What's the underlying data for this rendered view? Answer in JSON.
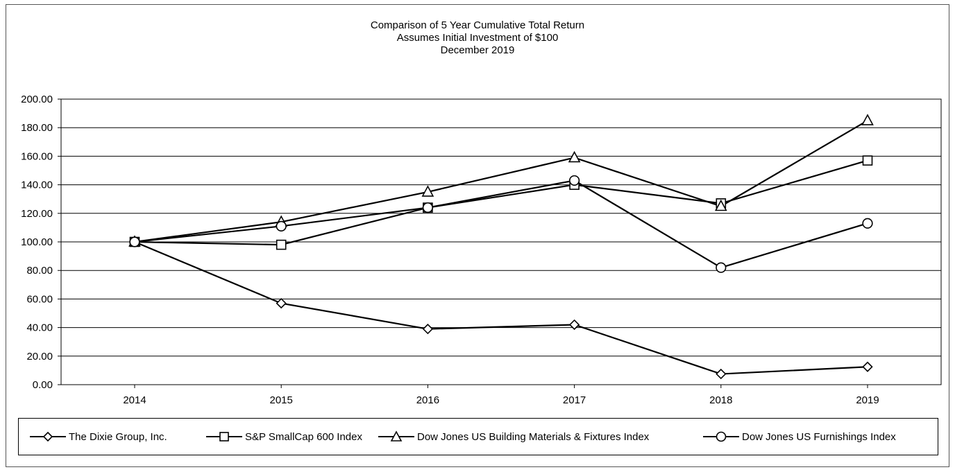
{
  "chart_data": {
    "type": "line",
    "title": "Comparison of 5 Year Cumulative Total Return",
    "subtitle_1": "Assumes Initial Investment of $100",
    "subtitle_2": "December 2019",
    "categories": [
      "2014",
      "2015",
      "2016",
      "2017",
      "2018",
      "2019"
    ],
    "ylim": [
      0,
      200
    ],
    "y_ticks": [
      "0.00",
      "20.00",
      "40.00",
      "60.00",
      "80.00",
      "100.00",
      "120.00",
      "140.00",
      "160.00",
      "180.00",
      "200.00"
    ],
    "grid": true,
    "legend_position": "bottom",
    "series": [
      {
        "name": "The Dixie Group, Inc.",
        "marker": "diamond",
        "values": [
          100,
          57,
          39,
          42,
          7.5,
          12.5
        ]
      },
      {
        "name": "S&P SmallCap 600 Index",
        "marker": "square",
        "values": [
          100,
          98,
          124,
          140,
          127,
          157
        ]
      },
      {
        "name": "Dow Jones US Building Materials & Fixtures Index",
        "marker": "triangle",
        "values": [
          100,
          114,
          135,
          159,
          125,
          185
        ]
      },
      {
        "name": "Dow Jones US Furnishings Index",
        "marker": "circle",
        "values": [
          100,
          111,
          124,
          143,
          82,
          113
        ]
      }
    ]
  }
}
